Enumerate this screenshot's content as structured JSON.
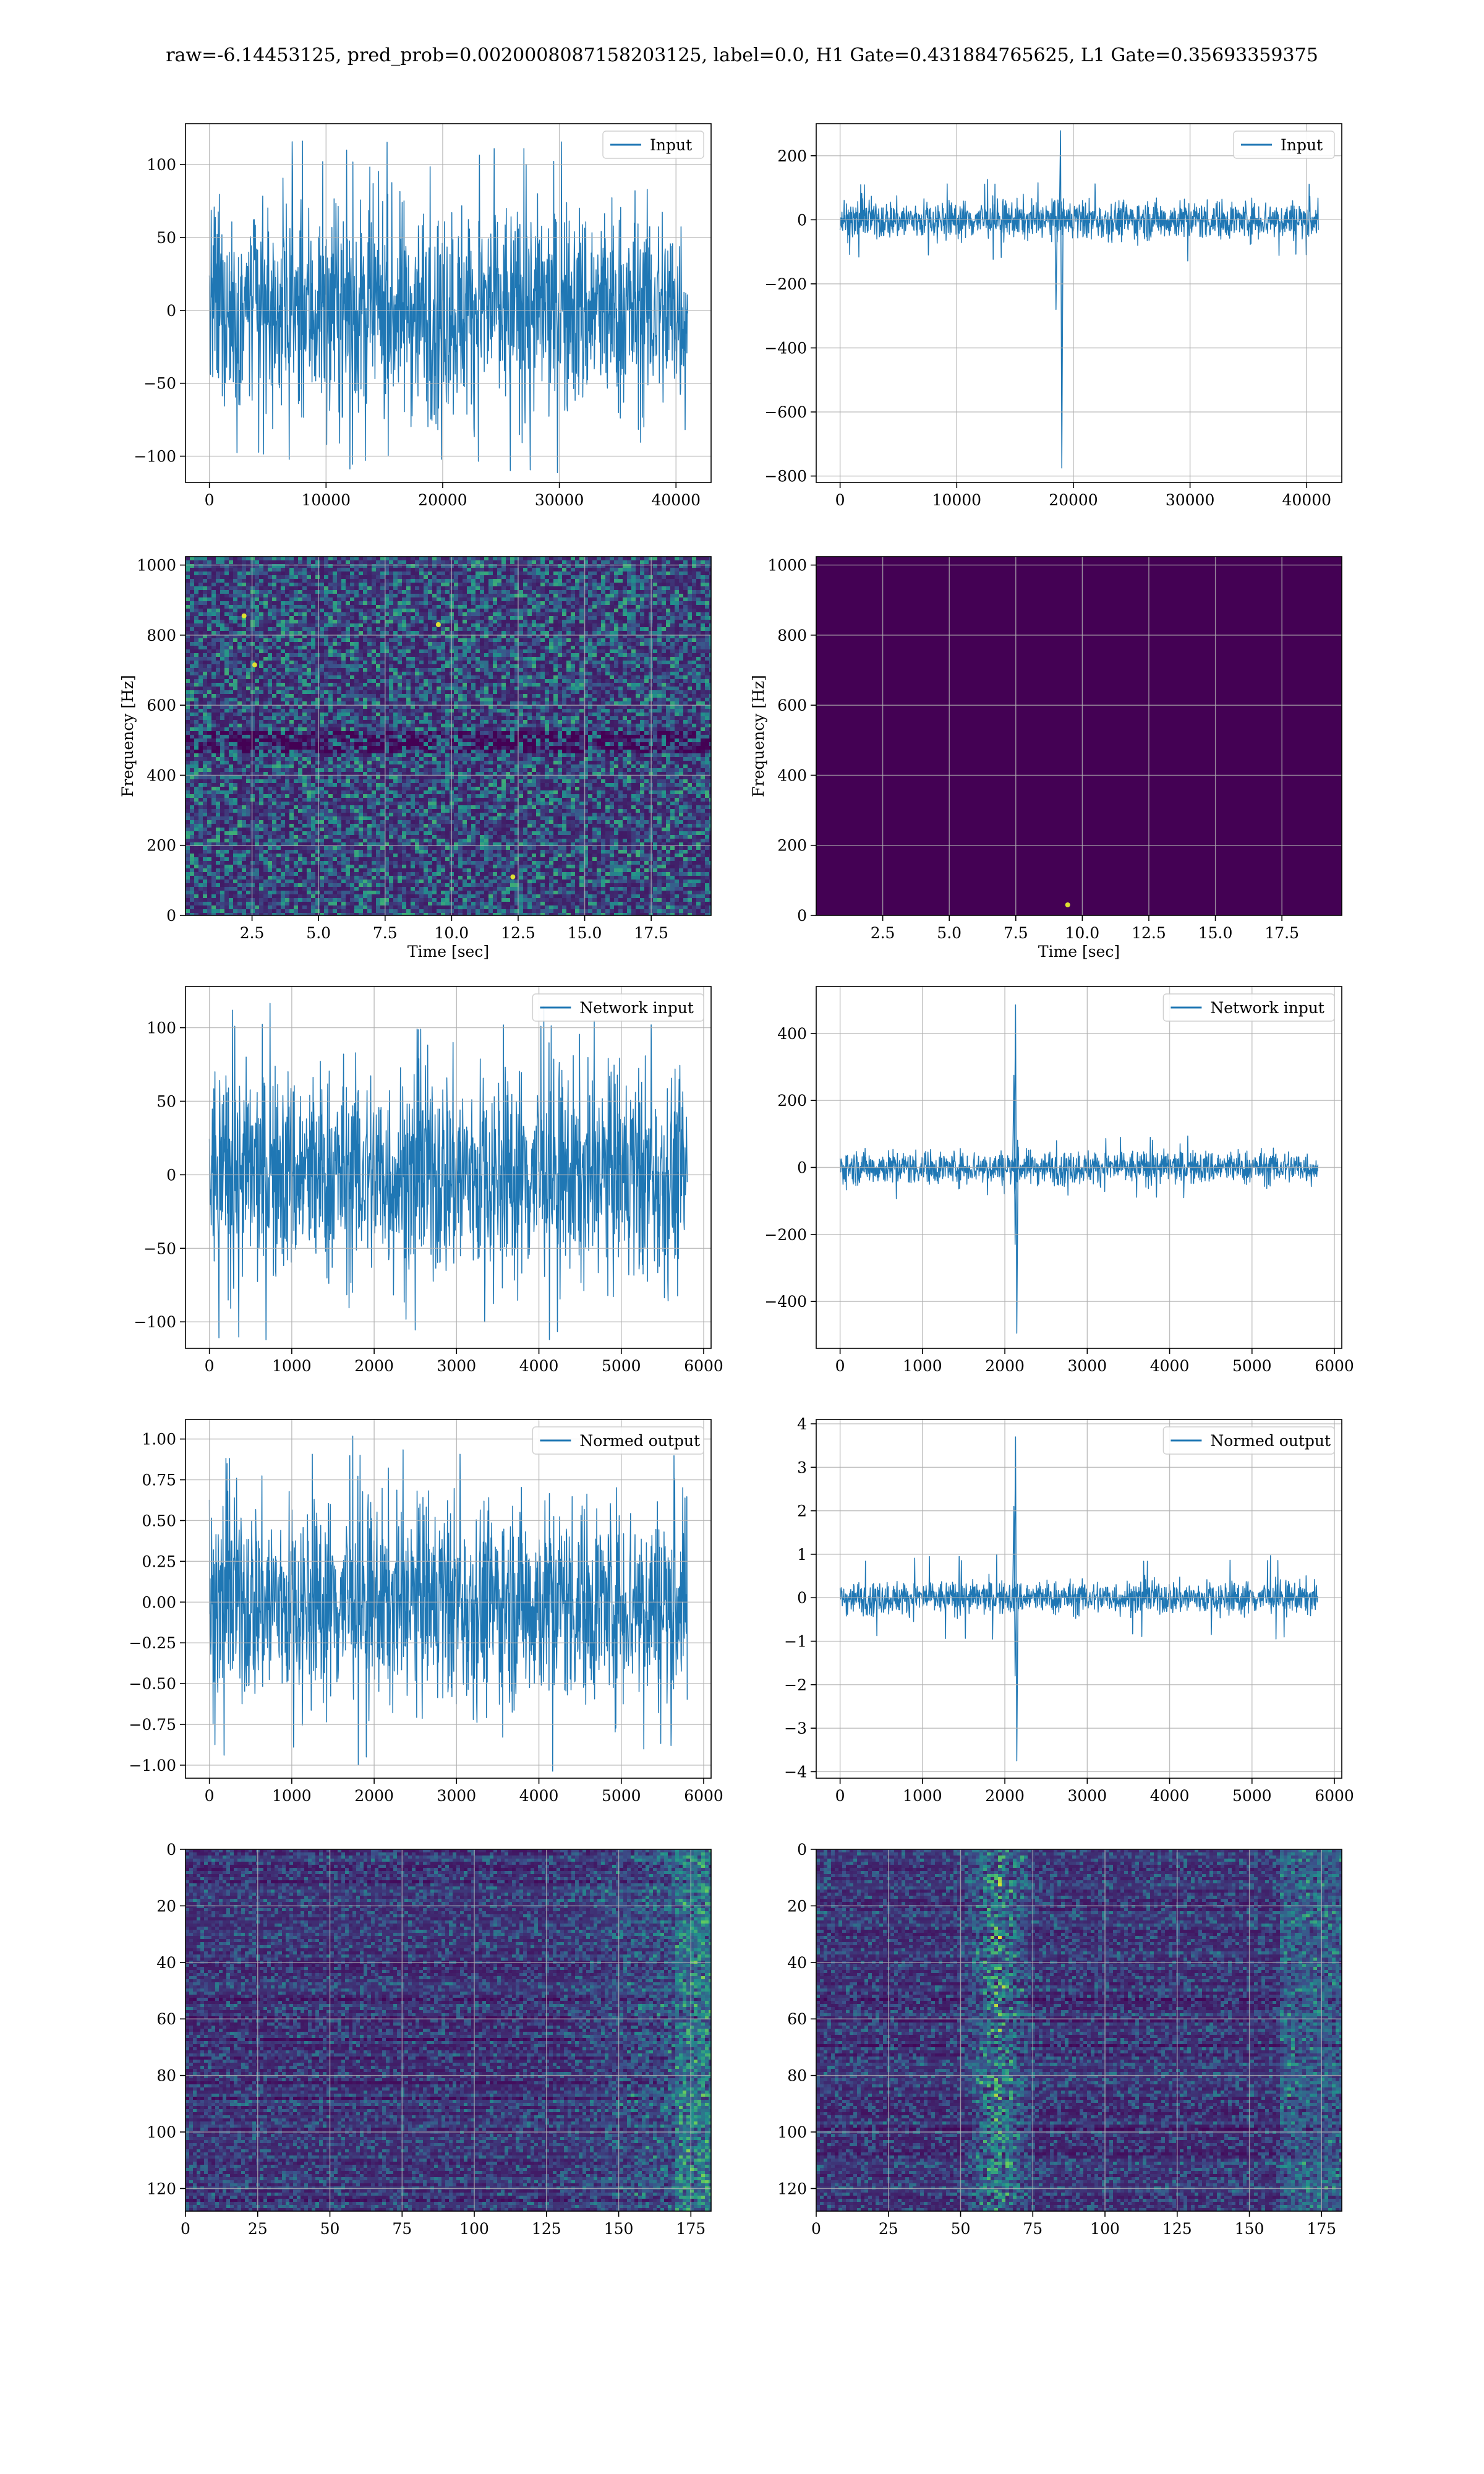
{
  "figure": {
    "suptitle": "raw=-6.14453125, pred_prob=0.0020008087158203125, label=0.0, H1 Gate=0.431884765625, L1 Gate=0.35693359375"
  },
  "colors": {
    "line": "#1f77b4",
    "viridis_dark": "#440154",
    "grid": "#b0b0b0"
  },
  "chart_data": [
    {
      "id": "input-h1",
      "type": "line",
      "legend": "Input",
      "xlim": [
        -2048,
        43008
      ],
      "ylim": [
        -118,
        128
      ],
      "xticks": [
        0,
        10000,
        20000,
        30000,
        40000
      ],
      "yticks": [
        -100,
        -50,
        0,
        50,
        100
      ],
      "xlabel": "",
      "ylabel": "",
      "signal": {
        "n": 41000,
        "amp": 36,
        "peak": 117,
        "spikes": []
      }
    },
    {
      "id": "input-l1",
      "type": "line",
      "legend": "Input",
      "xlim": [
        -2048,
        43008
      ],
      "ylim": [
        -820,
        300
      ],
      "xticks": [
        0,
        10000,
        20000,
        30000,
        40000
      ],
      "yticks": [
        -800,
        -600,
        -400,
        -200,
        0,
        200
      ],
      "xlabel": "",
      "ylabel": "",
      "signal": {
        "n": 41000,
        "amp": 30,
        "peak": 130,
        "spikes": [
          {
            "x": 18900,
            "ymax": 278,
            "ymin": -775
          },
          {
            "x": 18400,
            "ymax": 60,
            "ymin": -280
          }
        ]
      }
    },
    {
      "id": "spectrogram-h1",
      "type": "heatmap",
      "map": "viridis",
      "xlim": [
        0,
        19.75
      ],
      "ylim": [
        0,
        1024
      ],
      "xticks": [
        2.5,
        5.0,
        7.5,
        10.0,
        12.5,
        15.0,
        17.5
      ],
      "yticks": [
        0,
        200,
        400,
        600,
        800,
        1000
      ],
      "xlabel": "Time [sec]",
      "ylabel": "Frequency [Hz]",
      "texture": "noise",
      "hotspots": [
        {
          "x": 2.2,
          "y": 855
        },
        {
          "x": 9.5,
          "y": 830
        },
        {
          "x": 2.6,
          "y": 715
        },
        {
          "x": 12.3,
          "y": 110
        }
      ]
    },
    {
      "id": "spectrogram-l1",
      "type": "heatmap",
      "map": "viridis",
      "xlim": [
        0,
        19.75
      ],
      "ylim": [
        0,
        1024
      ],
      "xticks": [
        2.5,
        5.0,
        7.5,
        10.0,
        12.5,
        15.0,
        17.5
      ],
      "yticks": [
        0,
        200,
        400,
        600,
        800,
        1000
      ],
      "xlabel": "Time [sec]",
      "ylabel": "Frequency [Hz]",
      "texture": "flat",
      "hotspots": [
        {
          "x": 9.45,
          "y": 30
        }
      ]
    },
    {
      "id": "network-input-h1",
      "type": "line",
      "legend": "Network input",
      "xlim": [
        -290,
        6090
      ],
      "ylim": [
        -118,
        128
      ],
      "xticks": [
        0,
        1000,
        2000,
        3000,
        4000,
        5000,
        6000
      ],
      "yticks": [
        -100,
        -50,
        0,
        50,
        100
      ],
      "xlabel": "",
      "ylabel": "",
      "signal": {
        "n": 5800,
        "amp": 36,
        "peak": 118,
        "spikes": []
      }
    },
    {
      "id": "network-input-l1",
      "type": "line",
      "legend": "Network input",
      "xlim": [
        -290,
        6090
      ],
      "ylim": [
        -540,
        540
      ],
      "xticks": [
        0,
        1000,
        2000,
        3000,
        4000,
        5000,
        6000
      ],
      "yticks": [
        -400,
        -200,
        0,
        200,
        400
      ],
      "xlabel": "",
      "ylabel": "",
      "signal": {
        "n": 5800,
        "amp": 25,
        "peak": 95,
        "spikes": [
          {
            "x": 2130,
            "ymax": 485,
            "ymin": -495
          },
          {
            "x": 2110,
            "ymax": 275,
            "ymin": -230
          }
        ]
      }
    },
    {
      "id": "normed-output-h1",
      "type": "line",
      "legend": "Normed output",
      "xlim": [
        -290,
        6090
      ],
      "ylim": [
        -1.08,
        1.12
      ],
      "xticks": [
        0,
        1000,
        2000,
        3000,
        4000,
        5000,
        6000
      ],
      "yticks": [
        -1.0,
        -0.75,
        -0.5,
        -0.25,
        0.0,
        0.25,
        0.5,
        0.75,
        1.0
      ],
      "xlabel": "",
      "ylabel": "",
      "signal": {
        "n": 5800,
        "amp": 0.31,
        "peak": 1.05,
        "spikes": []
      }
    },
    {
      "id": "normed-output-l1",
      "type": "line",
      "legend": "Normed output",
      "xlim": [
        -290,
        6090
      ],
      "ylim": [
        -4.15,
        4.1
      ],
      "xticks": [
        0,
        1000,
        2000,
        3000,
        4000,
        5000,
        6000
      ],
      "yticks": [
        -4,
        -3,
        -2,
        -1,
        0,
        1,
        2,
        3,
        4
      ],
      "xlabel": "",
      "ylabel": "",
      "signal": {
        "n": 5800,
        "amp": 0.19,
        "peak": 1.0,
        "spikes": [
          {
            "x": 2130,
            "ymax": 3.7,
            "ymin": -3.75
          },
          {
            "x": 2110,
            "ymax": 2.1,
            "ymin": -1.8
          }
        ]
      }
    },
    {
      "id": "features-h1",
      "type": "heatmap",
      "map": "viridis",
      "xlim": [
        0,
        182
      ],
      "ylim": [
        128,
        0
      ],
      "xticks": [
        0,
        25,
        50,
        75,
        100,
        125,
        150,
        175
      ],
      "yticks": [
        0,
        20,
        40,
        60,
        80,
        100,
        120
      ],
      "xlabel": "",
      "ylabel": "",
      "texture": "features-edge"
    },
    {
      "id": "features-l1",
      "type": "heatmap",
      "map": "viridis",
      "xlim": [
        0,
        182
      ],
      "ylim": [
        128,
        0
      ],
      "xticks": [
        0,
        25,
        50,
        75,
        100,
        125,
        150,
        175
      ],
      "yticks": [
        0,
        20,
        40,
        60,
        80,
        100,
        120
      ],
      "xlabel": "",
      "ylabel": "",
      "texture": "features-center"
    }
  ]
}
